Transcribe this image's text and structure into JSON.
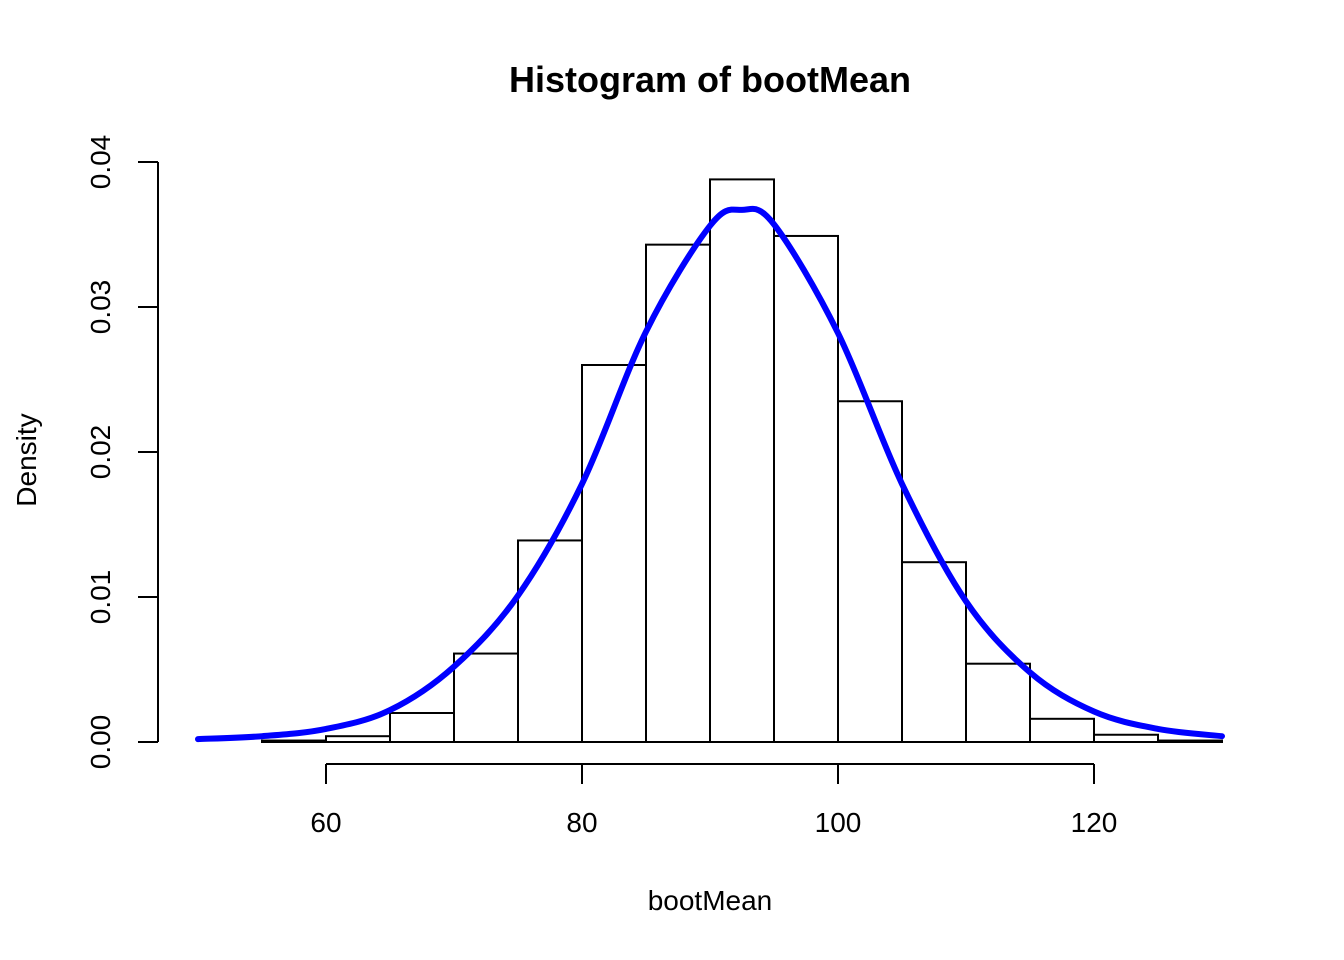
{
  "chart_data": {
    "type": "bar",
    "title": "Histogram of bootMean",
    "xlabel": "bootMean",
    "ylabel": "Density",
    "xlim": [
      50,
      130
    ],
    "ylim": [
      0,
      0.04
    ],
    "x_ticks": [
      60,
      80,
      100,
      120
    ],
    "x_tick_labels": [
      "60",
      "80",
      "100",
      "120"
    ],
    "y_ticks": [
      0,
      0.01,
      0.02,
      0.03,
      0.04
    ],
    "y_tick_labels": [
      "0.00",
      "0.01",
      "0.02",
      "0.03",
      "0.04"
    ],
    "bin_edges": [
      50,
      55,
      60,
      65,
      70,
      75,
      80,
      85,
      90,
      95,
      100,
      105,
      110,
      115,
      120,
      125,
      130
    ],
    "values": [
      0.0,
      0.0001,
      0.0004,
      0.002,
      0.0061,
      0.0139,
      0.026,
      0.0343,
      0.0388,
      0.0349,
      0.0235,
      0.0124,
      0.0054,
      0.0016,
      0.0005,
      0.0001
    ],
    "grid": false,
    "series": [
      {
        "type": "line",
        "color": "#0000ff",
        "x": [
          50,
          55,
          60,
          65,
          70,
          75,
          80,
          85,
          90,
          92.5,
          95,
          100,
          105,
          110,
          115,
          120,
          125,
          130
        ],
        "y": [
          0.0002,
          0.0004,
          0.0009,
          0.0022,
          0.0052,
          0.0101,
          0.0178,
          0.0283,
          0.0356,
          0.0367,
          0.0357,
          0.0282,
          0.0178,
          0.0097,
          0.0048,
          0.0021,
          0.0009,
          0.0004
        ]
      }
    ]
  }
}
